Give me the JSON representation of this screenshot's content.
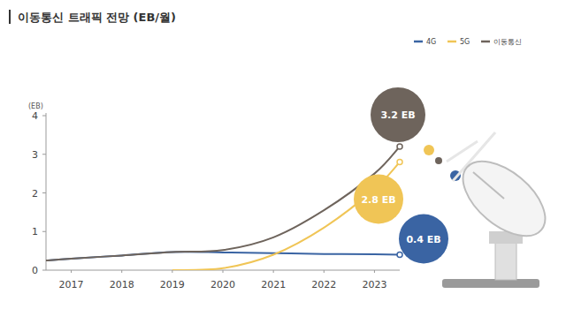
{
  "chart_data": {
    "type": "line",
    "title": "이동통신 트래픽 전망 (EB/월)",
    "y_label": "(EB)",
    "x": [
      2016.5,
      2017,
      2018,
      2019,
      2020,
      2021,
      2022,
      2023,
      2023.5
    ],
    "xlim": [
      2016.5,
      2023.5
    ],
    "xticks": [
      2017,
      2018,
      2019,
      2020,
      2021,
      2022,
      2023
    ],
    "ylim": [
      0,
      4
    ],
    "yticks": [
      0,
      1,
      2,
      3,
      4
    ],
    "grid": false,
    "legend": "top-right",
    "series": [
      {
        "name": "4G",
        "color": "#3a64a3",
        "marker": "circle",
        "values": [
          0.25,
          0.3,
          0.38,
          0.47,
          0.46,
          0.44,
          0.42,
          0.41,
          0.4
        ]
      },
      {
        "name": "5G",
        "color": "#f0c556",
        "marker": "circle",
        "values": [
          null,
          null,
          null,
          0,
          0.05,
          0.4,
          1.1,
          2.1,
          2.8
        ]
      },
      {
        "name": "이동통신",
        "color": "#6e645c",
        "marker": "circle",
        "values": [
          0.25,
          0.3,
          0.38,
          0.47,
          0.52,
          0.85,
          1.55,
          2.5,
          3.2
        ]
      }
    ],
    "annotations": [
      "0.4 EB",
      "2.8 EB",
      "3.2 EB"
    ]
  }
}
